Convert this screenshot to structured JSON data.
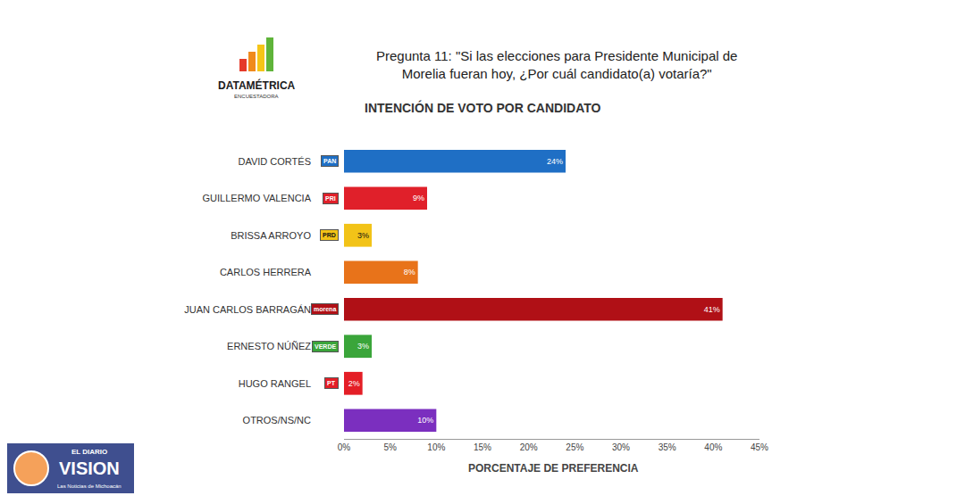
{
  "chart_data": {
    "type": "bar",
    "orientation": "horizontal",
    "brand": "DATAMÉTRICA",
    "brand_tagline": "ENCUESTADORA",
    "subtitle": "Pregunta 11: \"Si las elecciones para Presidente Municipal de Morelia fueran hoy, ¿Por cuál candidato(a) votaría?\"",
    "title": "INTENCIÓN DE VOTO POR CANDIDATO",
    "x_label": "PORCENTAJE DE PREFERENCIA",
    "categories": [
      "DAVID CORTÉS",
      "GUILLERMO VALENCIA",
      "BRISSA ARROYO",
      "CARLOS HERRERA",
      "JUAN CARLOS BARRAGÁN",
      "ERNESTO NÚÑEZ",
      "HUGO RANGEL",
      "OTROS/NS/NC"
    ],
    "parties": [
      "PAN",
      "PRI",
      "PRD",
      null,
      "morena",
      "VERDE",
      "PT",
      null
    ],
    "values": [
      24,
      9,
      3,
      8,
      41,
      3,
      2,
      10
    ],
    "value_labels": [
      "24%",
      "9%",
      "3%",
      "8%",
      "41%",
      "3%",
      "2%",
      "10%"
    ],
    "colors": [
      "#1f6fc5",
      "#e0202a",
      "#f2c318",
      "#e8731a",
      "#b01016",
      "#3aa53a",
      "#e41e26",
      "#7b2fbf"
    ],
    "data_labels": true,
    "grid": false,
    "xlim": [
      0,
      45
    ],
    "xticks": [
      {
        "value": 0,
        "label": "0%"
      },
      {
        "value": 5,
        "label": "5%"
      },
      {
        "value": 10,
        "label": "10%"
      },
      {
        "value": 15,
        "label": "15%"
      },
      {
        "value": 20,
        "label": "20%"
      },
      {
        "value": 25,
        "label": "25%"
      },
      {
        "value": 30,
        "label": "30%"
      },
      {
        "value": 35,
        "label": "35%"
      },
      {
        "value": 40,
        "label": "40%"
      },
      {
        "value": 45,
        "label": "45%"
      }
    ],
    "watermark": [
      "EL DIARIO",
      "VISION",
      "Las Noticias de Michoacán"
    ]
  }
}
